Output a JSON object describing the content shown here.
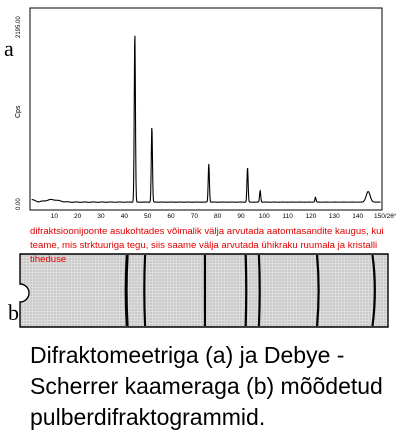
{
  "labels": {
    "a": "a",
    "b": "b"
  },
  "note": "difraktsioonijoonte asukohtades võimalik välja arvutada aatomtasandite kaugus, kui teame, mis strktuuriga tegu, siis saame välja arvutada ühikraku ruumala ja kristalli tiheduse",
  "caption": "Difraktomeetriga (a) ja Debye - Scherrer kaameraga (b) mõõdetud pulberdifraktogrammid.",
  "chart_data": {
    "type": "line",
    "ylabel": "Cps",
    "ytick_labels": [
      "2195.00",
      "0.00"
    ],
    "ylim": [
      0,
      2195
    ],
    "xlim": [
      0,
      150
    ],
    "xtick_values": [
      10,
      20,
      30,
      40,
      50,
      60,
      70,
      80,
      90,
      100,
      110,
      120,
      130,
      140,
      150
    ],
    "xtick_labels": [
      "10",
      "20",
      "30",
      "40",
      "50",
      "60",
      "70",
      "80",
      "90",
      "100",
      "110",
      "120",
      "130",
      "140",
      "150/2θ°"
    ],
    "peaks": [
      {
        "x": 44.5,
        "y": 1930
      },
      {
        "x": 51.8,
        "y": 860
      },
      {
        "x": 76.2,
        "y": 435
      },
      {
        "x": 92.8,
        "y": 395
      },
      {
        "x": 98.2,
        "y": 130
      },
      {
        "x": 121.9,
        "y": 55
      },
      {
        "x": 144.5,
        "y": 120
      }
    ]
  },
  "film": {
    "line_positions": [
      44.5,
      51.8,
      76.2,
      92.8,
      98.2,
      121.9,
      144.5
    ]
  },
  "colors": {
    "note": "#e00000",
    "film": "#d6d6d6"
  }
}
